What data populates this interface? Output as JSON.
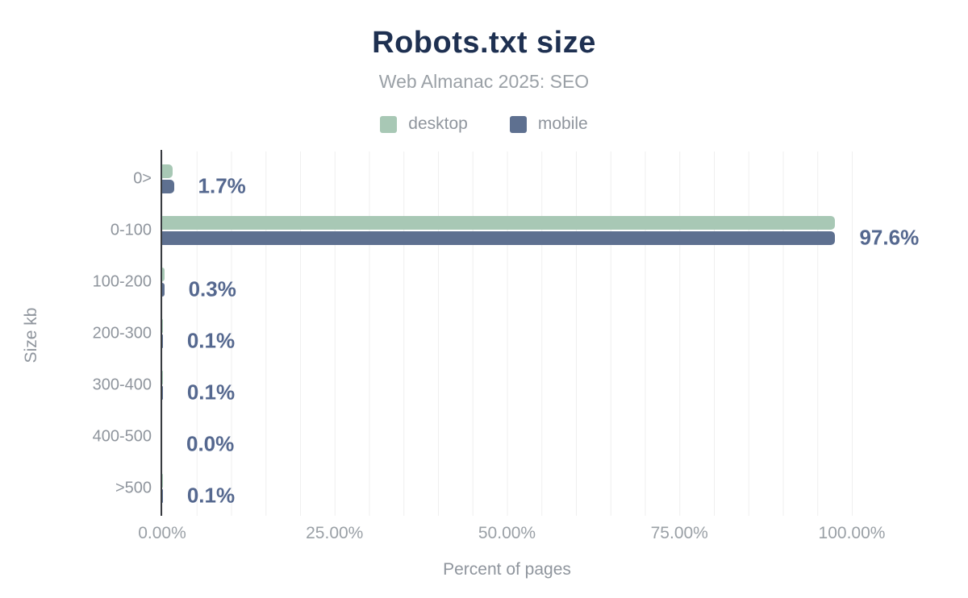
{
  "header": {
    "title": "Robots.txt size",
    "subtitle": "Web Almanac 2025: SEO"
  },
  "legend": [
    {
      "label": "desktop",
      "color": "#a8c8b5"
    },
    {
      "label": "mobile",
      "color": "#5e7090"
    }
  ],
  "chart_data": {
    "type": "bar",
    "orientation": "horizontal",
    "title": "Robots.txt size",
    "subtitle": "Web Almanac 2025: SEO",
    "categories": [
      "0>",
      "0-100",
      "100-200",
      "200-300",
      "300-400",
      "400-500",
      ">500"
    ],
    "series": [
      {
        "name": "desktop",
        "color": "#a8c8b5",
        "values": [
          1.5,
          97.5,
          0.3,
          0.1,
          0.1,
          0.0,
          0.1
        ]
      },
      {
        "name": "mobile",
        "color": "#5e7090",
        "values": [
          1.7,
          97.6,
          0.3,
          0.1,
          0.1,
          0.0,
          0.1
        ]
      }
    ],
    "value_labels": [
      "1.7%",
      "97.6%",
      "0.3%",
      "0.1%",
      "0.1%",
      "0.0%",
      "0.1%"
    ],
    "value_label_color": "#55688f",
    "xlabel": "Percent of pages",
    "ylabel": "Size kb",
    "x_ticks": [
      "0.00%",
      "25.00%",
      "50.00%",
      "75.00%",
      "100.00%"
    ],
    "x_tick_positions": [
      0,
      25,
      50,
      75,
      100
    ],
    "xlim": [
      0,
      100
    ],
    "grid": "vertical gridlines every 5%",
    "legend_position": "top"
  }
}
